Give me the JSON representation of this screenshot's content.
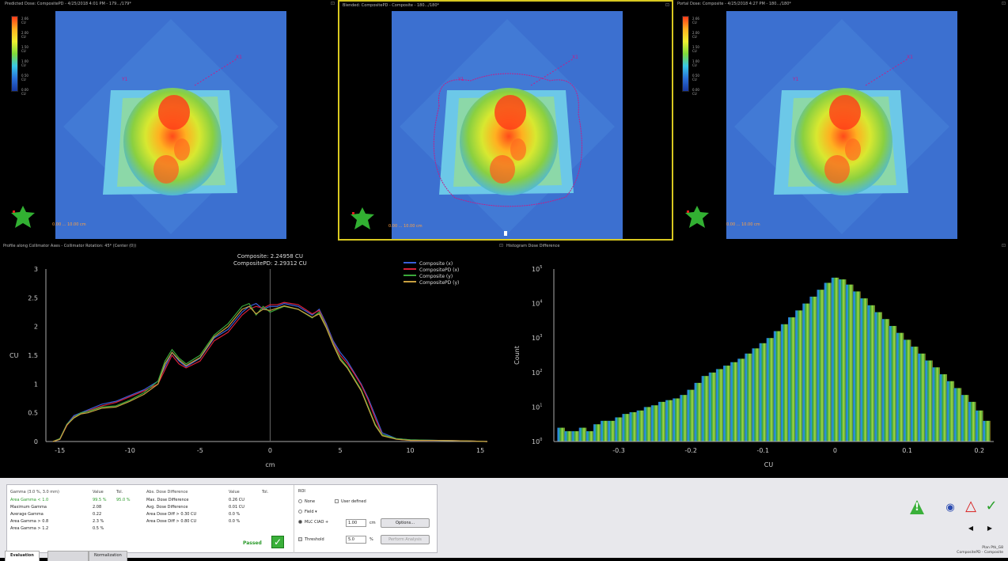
{
  "panels": [
    {
      "title": "Predicted Dose: CompositePD - 4/25/2018 4:01 PM - 179.../179*",
      "scale_label": "0.00   ...  10.00 cm"
    },
    {
      "title": "Blended: CompositePD - Composite - 180.../180*",
      "scale_label": "0.00   ...  10.00 cm"
    },
    {
      "title": "Portal Dose: Composite - 4/25/2018 4:27 PM - 180.../180*",
      "scale_label": "0.00   ...  10.00 cm"
    }
  ],
  "legend_ticks": [
    "2.66 CU",
    "2.00 CU",
    "1.50 CU",
    "1.00 CU",
    "0.50 CU",
    "0.00 CU"
  ],
  "profile_title": "Profile along Collimator Axes - Collimator Rotation: 45* (Center (0))",
  "histogram_title": "Histogram Dose Difference",
  "chart_data": [
    {
      "type": "line",
      "annotation": [
        "Composite: 2.24958 CU",
        "CompositePD: 2.29312 CU"
      ],
      "xlabel": "cm",
      "ylabel": "CU",
      "xlim": [
        -16,
        15.5
      ],
      "ylim": [
        0,
        3
      ],
      "xticks": [
        -15,
        -10,
        -5,
        0,
        5,
        10,
        15
      ],
      "yticks": [
        0,
        0.5,
        1,
        1.5,
        2,
        2.5,
        3
      ],
      "legend": "top-right",
      "grid": false,
      "series": [
        {
          "name": "Composite (x)",
          "color": "#3a5fd8",
          "x": [
            -15.5,
            -15,
            -14.5,
            -14,
            -13.5,
            -13,
            -12,
            -11,
            -10,
            -9,
            -8,
            -7.5,
            -7,
            -6.5,
            -6,
            -5,
            -4,
            -3,
            -2.5,
            -2,
            -1.5,
            -1,
            -0.5,
            0,
            0.5,
            1,
            2,
            3,
            3.5,
            4,
            4.5,
            5,
            5.5,
            6,
            6.5,
            7,
            7.5,
            8,
            9,
            10,
            12,
            14,
            15.5
          ],
          "y": [
            0,
            0.05,
            0.3,
            0.45,
            0.5,
            0.55,
            0.65,
            0.7,
            0.8,
            0.9,
            1.05,
            1.3,
            1.55,
            1.4,
            1.3,
            1.45,
            1.8,
            1.95,
            2.1,
            2.25,
            2.35,
            2.4,
            2.3,
            2.35,
            2.35,
            2.4,
            2.35,
            2.2,
            2.3,
            2.05,
            1.75,
            1.55,
            1.4,
            1.2,
            1.0,
            0.75,
            0.45,
            0.15,
            0.05,
            0.03,
            0.02,
            0.01,
            0
          ]
        },
        {
          "name": "CompositePD (x)",
          "color": "#d8203a",
          "x": [
            -15.5,
            -15,
            -14.5,
            -14,
            -13.5,
            -13,
            -12,
            -11,
            -10,
            -9,
            -8,
            -7.5,
            -7,
            -6.5,
            -6,
            -5,
            -4,
            -3,
            -2.5,
            -2,
            -1.5,
            -1,
            -0.5,
            0,
            0.5,
            1,
            2,
            3,
            3.5,
            4,
            4.5,
            5,
            5.5,
            6,
            6.5,
            7,
            7.5,
            8,
            9,
            10,
            12,
            14,
            15.5
          ],
          "y": [
            0,
            0.04,
            0.28,
            0.43,
            0.48,
            0.53,
            0.62,
            0.68,
            0.78,
            0.88,
            1.0,
            1.25,
            1.5,
            1.35,
            1.28,
            1.4,
            1.75,
            1.9,
            2.05,
            2.2,
            2.3,
            2.35,
            2.32,
            2.38,
            2.38,
            2.42,
            2.38,
            2.22,
            2.28,
            2.02,
            1.72,
            1.5,
            1.36,
            1.18,
            0.98,
            0.72,
            0.4,
            0.12,
            0.04,
            0.02,
            0.02,
            0.01,
            0
          ]
        },
        {
          "name": "Composite (y)",
          "color": "#3aa83a",
          "x": [
            -15.5,
            -15,
            -14.5,
            -14,
            -13.5,
            -13,
            -12,
            -11,
            -10,
            -9,
            -8,
            -7.5,
            -7,
            -6.5,
            -6,
            -5,
            -4,
            -3,
            -2.5,
            -2,
            -1.5,
            -1,
            -0.5,
            0,
            0.5,
            1,
            2,
            3,
            3.5,
            4,
            4.5,
            5,
            5.5,
            6,
            6.5,
            7,
            7.5,
            8,
            9,
            10,
            12,
            14,
            15.5
          ],
          "y": [
            0,
            0.05,
            0.3,
            0.42,
            0.5,
            0.52,
            0.6,
            0.62,
            0.72,
            0.85,
            1.05,
            1.4,
            1.6,
            1.45,
            1.35,
            1.5,
            1.85,
            2.05,
            2.2,
            2.35,
            2.4,
            2.2,
            2.35,
            2.25,
            2.3,
            2.35,
            2.3,
            2.15,
            2.25,
            2.0,
            1.7,
            1.45,
            1.3,
            1.1,
            0.9,
            0.6,
            0.3,
            0.12,
            0.05,
            0.03,
            0.02,
            0.01,
            0
          ]
        },
        {
          "name": "CompositePD (y)",
          "color": "#c8a040",
          "x": [
            -15.5,
            -15,
            -14.5,
            -14,
            -13.5,
            -13,
            -12,
            -11,
            -10,
            -9,
            -8,
            -7.5,
            -7,
            -6.5,
            -6,
            -5,
            -4,
            -3,
            -2.5,
            -2,
            -1.5,
            -1,
            -0.5,
            0,
            0.5,
            1,
            2,
            3,
            3.5,
            4,
            4.5,
            5,
            5.5,
            6,
            6.5,
            7,
            7.5,
            8,
            9,
            10,
            12,
            14,
            15.5
          ],
          "y": [
            0,
            0.04,
            0.29,
            0.41,
            0.48,
            0.5,
            0.58,
            0.6,
            0.7,
            0.82,
            1.0,
            1.35,
            1.55,
            1.42,
            1.32,
            1.46,
            1.82,
            2.0,
            2.15,
            2.3,
            2.35,
            2.22,
            2.3,
            2.28,
            2.32,
            2.36,
            2.3,
            2.16,
            2.22,
            1.98,
            1.68,
            1.42,
            1.28,
            1.08,
            0.88,
            0.58,
            0.28,
            0.1,
            0.04,
            0.02,
            0.02,
            0.01,
            0
          ]
        }
      ]
    },
    {
      "type": "bar",
      "xlabel": "CU",
      "ylabel": "Count",
      "xlim": [
        -0.39,
        0.22
      ],
      "ylog": true,
      "ylim_exp": [
        0,
        5
      ],
      "xticks": [
        "-0.3",
        "-0.2",
        "-0.1",
        "0",
        "0.1",
        "0.2"
      ],
      "ytick_exponents": [
        0,
        1,
        2,
        3,
        4,
        5
      ],
      "grid": false,
      "bins_center": [
        -0.38,
        -0.37,
        -0.36,
        -0.35,
        -0.34,
        -0.33,
        -0.32,
        -0.31,
        -0.3,
        -0.29,
        -0.28,
        -0.27,
        -0.26,
        -0.25,
        -0.24,
        -0.23,
        -0.22,
        -0.21,
        -0.2,
        -0.19,
        -0.18,
        -0.17,
        -0.16,
        -0.15,
        -0.14,
        -0.13,
        -0.12,
        -0.11,
        -0.1,
        -0.09,
        -0.08,
        -0.07,
        -0.06,
        -0.05,
        -0.04,
        -0.03,
        -0.02,
        -0.01,
        0.0,
        0.01,
        0.02,
        0.03,
        0.04,
        0.05,
        0.06,
        0.07,
        0.08,
        0.09,
        0.1,
        0.11,
        0.12,
        0.13,
        0.14,
        0.15,
        0.16,
        0.17,
        0.18,
        0.19,
        0.2,
        0.21
      ],
      "log_counts": [
        0.4,
        0.3,
        0.3,
        0.4,
        0.3,
        0.5,
        0.6,
        0.6,
        0.7,
        0.8,
        0.85,
        0.9,
        1.0,
        1.05,
        1.15,
        1.2,
        1.25,
        1.35,
        1.5,
        1.7,
        1.9,
        2.0,
        2.1,
        2.2,
        2.3,
        2.4,
        2.55,
        2.7,
        2.85,
        3.0,
        3.2,
        3.4,
        3.6,
        3.8,
        4.0,
        4.2,
        4.4,
        4.6,
        4.75,
        4.7,
        4.55,
        4.35,
        4.15,
        3.95,
        3.75,
        3.55,
        3.35,
        3.15,
        2.95,
        2.75,
        2.55,
        2.35,
        2.15,
        1.95,
        1.75,
        1.55,
        1.35,
        1.15,
        0.9,
        0.6
      ]
    }
  ],
  "stats": {
    "headers": [
      "Gamma (3.0 %, 3.0 mm)",
      "Value",
      "Tol.",
      "Abs. Dose Difference",
      "Value",
      "Tol."
    ],
    "rows": [
      [
        "Area Gamma < 1.0",
        "99.5 %",
        "95.0 %",
        "Max. Dose Difference",
        "0.26 CU",
        ""
      ],
      [
        "Maximum Gamma",
        "2.08",
        "",
        "Avg. Dose Difference",
        "0.01 CU",
        ""
      ],
      [
        "Average Gamma",
        "0.22",
        "",
        "Area Dose Diff > 0.30 CU",
        "0.0 %",
        ""
      ],
      [
        "Area Gamma > 0.8",
        "2.3 %",
        "",
        "Area Dose Diff > 0.80 CU",
        "0.0 %",
        ""
      ],
      [
        "Area Gamma > 1.2",
        "0.5 %",
        "",
        "",
        "",
        ""
      ]
    ],
    "passed": "Passed"
  },
  "roi": {
    "title": "ROI",
    "none": "None",
    "user_defined": "User defined",
    "field": "Field",
    "mlc_ciao": "MLC CIAO +",
    "mlc_value": "1.00",
    "mlc_unit": "cm",
    "options": "Options...",
    "threshold": "Threshold",
    "threshold_value": "5.0",
    "threshold_unit": "%",
    "perform": "Perform Analysis"
  },
  "tabs": [
    "Evaluation",
    "",
    "Normalization"
  ],
  "footer": {
    "line1": "Plan Ptk_G8",
    "line2": "CompositePD - Composite"
  },
  "colors": {
    "accent_yellow": "#d8c820",
    "pass_green": "#2a9a2a",
    "roi_magenta": "#c0208a"
  }
}
